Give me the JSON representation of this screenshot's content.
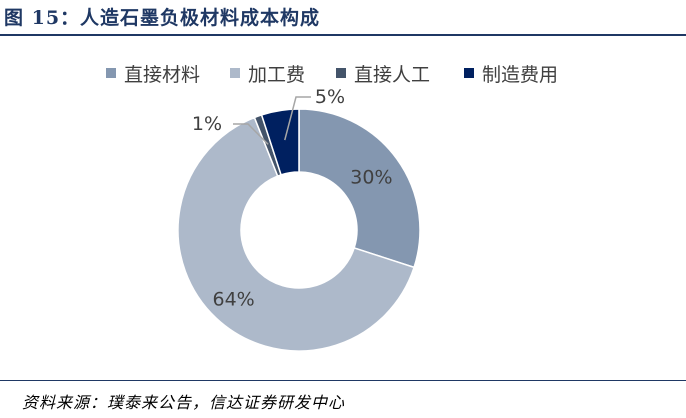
{
  "title": "图 15：人造石墨负极材料成本构成",
  "source": "资料来源：璞泰来公告，信达证券研发中心",
  "chart_data": {
    "type": "pie",
    "donut": true,
    "legend_position": "top",
    "slices": [
      {
        "name": "直接材料",
        "value": 30,
        "label": "30%",
        "color": "#8497b0"
      },
      {
        "name": "加工费",
        "value": 64,
        "label": "64%",
        "color": "#adb9ca"
      },
      {
        "name": "直接人工",
        "value": 1,
        "label": "1%",
        "color": "#44546a"
      },
      {
        "name": "制造费用",
        "value": 5,
        "label": "5%",
        "color": "#002060"
      }
    ]
  }
}
